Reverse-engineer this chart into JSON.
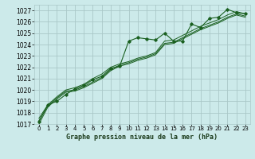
{
  "title": "Graphe pression niveau de la mer (hPa)",
  "bg_color": "#cceaea",
  "grid_color": "#aac8c8",
  "line_color": "#1a6020",
  "xlim": [
    -0.5,
    23.5
  ],
  "ylim": [
    1017,
    1027.5
  ],
  "yticks": [
    1017,
    1018,
    1019,
    1020,
    1021,
    1022,
    1023,
    1024,
    1025,
    1026,
    1027
  ],
  "xticks": [
    0,
    1,
    2,
    3,
    4,
    5,
    6,
    7,
    8,
    9,
    10,
    11,
    12,
    13,
    14,
    15,
    16,
    17,
    18,
    19,
    20,
    21,
    22,
    23
  ],
  "series": [
    [
      1017.2,
      1018.7,
      1019.0,
      1019.6,
      1020.1,
      1020.4,
      1020.9,
      1021.2,
      1021.9,
      1022.1,
      1024.3,
      1024.6,
      1024.5,
      1024.4,
      1025.0,
      1024.3,
      1024.3,
      1025.8,
      1025.5,
      1026.3,
      1026.4,
      1027.1,
      1026.8,
      1026.7
    ],
    [
      1017.5,
      1018.7,
      1019.4,
      1020.0,
      1020.2,
      1020.5,
      1021.0,
      1021.4,
      1022.0,
      1022.3,
      1022.5,
      1022.8,
      1023.0,
      1023.3,
      1024.3,
      1024.4,
      1024.8,
      1025.2,
      1025.6,
      1025.9,
      1026.2,
      1026.6,
      1026.9,
      1026.7
    ],
    [
      1017.3,
      1018.6,
      1019.3,
      1019.9,
      1020.0,
      1020.3,
      1020.7,
      1021.1,
      1021.8,
      1022.2,
      1022.4,
      1022.7,
      1022.9,
      1023.2,
      1024.1,
      1024.2,
      1024.6,
      1025.0,
      1025.4,
      1025.7,
      1026.0,
      1026.4,
      1026.7,
      1026.5
    ],
    [
      1017.0,
      1018.5,
      1019.2,
      1019.8,
      1019.9,
      1020.2,
      1020.6,
      1021.0,
      1021.7,
      1022.1,
      1022.3,
      1022.6,
      1022.8,
      1023.1,
      1024.0,
      1024.1,
      1024.5,
      1024.9,
      1025.3,
      1025.6,
      1025.9,
      1026.3,
      1026.6,
      1026.4
    ]
  ],
  "marker_series": 0,
  "title_fontsize": 6.0,
  "tick_fontsize": 5.0,
  "ytick_fontsize": 5.5
}
